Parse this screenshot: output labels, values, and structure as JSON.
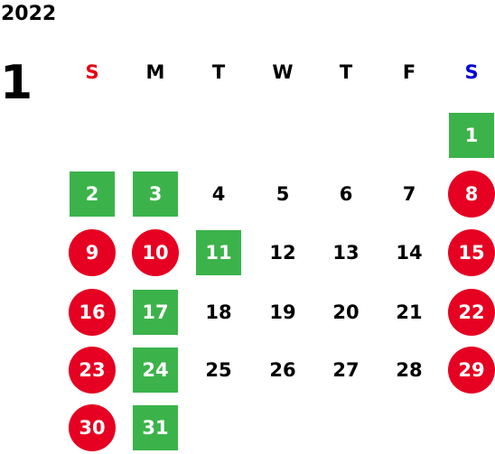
{
  "calendar": {
    "year": "2022",
    "month": "1",
    "colors": {
      "sunday_label": "#e60012",
      "saturday_label": "#0000d6",
      "weekday_label": "#000000",
      "circle_fill": "#e60021",
      "box_fill": "#3bb34a",
      "plain_text": "#000000",
      "marked_text": "#ffffff"
    },
    "weekdays": [
      "S",
      "M",
      "T",
      "W",
      "T",
      "F",
      "S"
    ],
    "weeks": [
      [
        {
          "label": "",
          "style": "none"
        },
        {
          "label": "",
          "style": "none"
        },
        {
          "label": "",
          "style": "none"
        },
        {
          "label": "",
          "style": "none"
        },
        {
          "label": "",
          "style": "none"
        },
        {
          "label": "",
          "style": "none"
        },
        {
          "label": "1",
          "style": "box"
        }
      ],
      [
        {
          "label": "2",
          "style": "box"
        },
        {
          "label": "3",
          "style": "box"
        },
        {
          "label": "4",
          "style": "plain"
        },
        {
          "label": "5",
          "style": "plain"
        },
        {
          "label": "6",
          "style": "plain"
        },
        {
          "label": "7",
          "style": "plain"
        },
        {
          "label": "8",
          "style": "circle"
        }
      ],
      [
        {
          "label": "9",
          "style": "circle"
        },
        {
          "label": "10",
          "style": "circle"
        },
        {
          "label": "11",
          "style": "box"
        },
        {
          "label": "12",
          "style": "plain"
        },
        {
          "label": "13",
          "style": "plain"
        },
        {
          "label": "14",
          "style": "plain"
        },
        {
          "label": "15",
          "style": "circle"
        }
      ],
      [
        {
          "label": "16",
          "style": "circle"
        },
        {
          "label": "17",
          "style": "box"
        },
        {
          "label": "18",
          "style": "plain"
        },
        {
          "label": "19",
          "style": "plain"
        },
        {
          "label": "20",
          "style": "plain"
        },
        {
          "label": "21",
          "style": "plain"
        },
        {
          "label": "22",
          "style": "circle"
        }
      ],
      [
        {
          "label": "23",
          "style": "circle"
        },
        {
          "label": "24",
          "style": "box"
        },
        {
          "label": "25",
          "style": "plain"
        },
        {
          "label": "26",
          "style": "plain"
        },
        {
          "label": "27",
          "style": "plain"
        },
        {
          "label": "28",
          "style": "plain"
        },
        {
          "label": "29",
          "style": "circle"
        }
      ],
      [
        {
          "label": "30",
          "style": "circle"
        },
        {
          "label": "31",
          "style": "box"
        },
        {
          "label": "",
          "style": "none"
        },
        {
          "label": "",
          "style": "none"
        },
        {
          "label": "",
          "style": "none"
        },
        {
          "label": "",
          "style": "none"
        },
        {
          "label": "",
          "style": "none"
        }
      ]
    ]
  }
}
